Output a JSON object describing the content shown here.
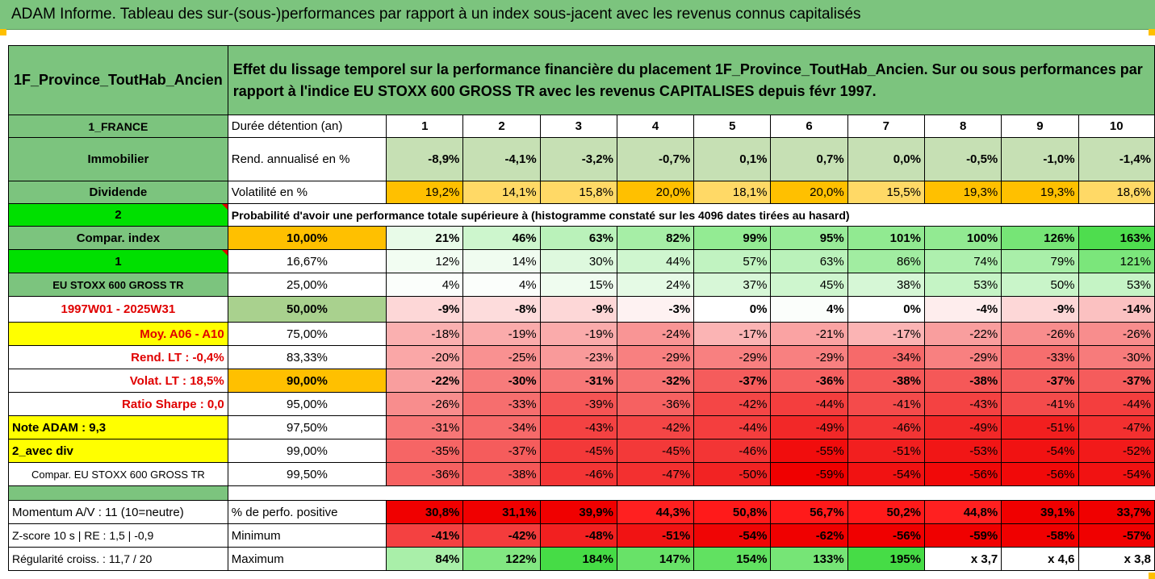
{
  "title": "ADAM Informe. Tableau des sur-(sous-)performances par rapport à un index sous-jacent avec les revenus connus capitalisés",
  "header": {
    "fund_name": "1F_Province_ToutHab_Ancien",
    "description": "Effet du lissage temporel sur la performance financière du placement 1F_Province_ToutHab_Ancien. Sur ou sous performances par rapport à l'indice EU STOXX 600 GROSS TR avec les revenus CAPITALISES depuis févr 1997."
  },
  "rows": {
    "duration": {
      "left": "1_FRANCE",
      "label": "Durée détention (an)",
      "values": [
        "1",
        "2",
        "3",
        "4",
        "5",
        "6",
        "7",
        "8",
        "9",
        "10"
      ]
    },
    "return": {
      "left": "Immobilier",
      "label": "Rend. annualisé en %",
      "values": [
        "-8,9%",
        "-4,1%",
        "-3,2%",
        "-0,7%",
        "0,1%",
        "0,7%",
        "0,0%",
        "-0,5%",
        "-1,0%",
        "-1,4%"
      ]
    },
    "volatility": {
      "left": "Dividende",
      "label": "Volatilité en %",
      "values": [
        "19,2%",
        "14,1%",
        "15,8%",
        "20,0%",
        "18,1%",
        "20,0%",
        "15,5%",
        "19,3%",
        "19,3%",
        "18,6%"
      ]
    },
    "probability": {
      "left": "2",
      "label": "Probabilité d'avoir une performance totale supérieure à (histogramme constaté sur les 4096 dates tirées au hasard)"
    }
  },
  "quantiles": [
    {
      "left": "Compar. index",
      "pct": "10,00%",
      "values": [
        "21%",
        "46%",
        "63%",
        "82%",
        "99%",
        "95%",
        "101%",
        "100%",
        "126%",
        "163%"
      ]
    },
    {
      "left": "1",
      "pct": "16,67%",
      "values": [
        "12%",
        "14%",
        "30%",
        "44%",
        "57%",
        "63%",
        "86%",
        "74%",
        "79%",
        "121%"
      ]
    },
    {
      "left": "EU STOXX 600 GROSS TR",
      "pct": "25,00%",
      "values": [
        "4%",
        "4%",
        "15%",
        "24%",
        "37%",
        "45%",
        "38%",
        "53%",
        "50%",
        "53%"
      ]
    },
    {
      "left": "1997W01 - 2025W31",
      "pct": "50,00%",
      "values": [
        "-9%",
        "-8%",
        "-9%",
        "-3%",
        "0%",
        "4%",
        "0%",
        "-4%",
        "-9%",
        "-14%"
      ]
    },
    {
      "left": "Moy. A06 - A10",
      "pct": "75,00%",
      "values": [
        "-18%",
        "-19%",
        "-19%",
        "-24%",
        "-17%",
        "-21%",
        "-17%",
        "-22%",
        "-26%",
        "-26%"
      ]
    },
    {
      "left": "Rend. LT :   -0,4%",
      "pct": "83,33%",
      "values": [
        "-20%",
        "-25%",
        "-23%",
        "-29%",
        "-29%",
        "-29%",
        "-34%",
        "-29%",
        "-33%",
        "-30%"
      ]
    },
    {
      "left": "Volat. LT :   18,5%",
      "pct": "90,00%",
      "values": [
        "-22%",
        "-30%",
        "-31%",
        "-32%",
        "-37%",
        "-36%",
        "-38%",
        "-38%",
        "-37%",
        "-37%"
      ]
    },
    {
      "left": "Ratio Sharpe :   0,0",
      "pct": "95,00%",
      "values": [
        "-26%",
        "-33%",
        "-39%",
        "-36%",
        "-42%",
        "-44%",
        "-41%",
        "-43%",
        "-41%",
        "-44%"
      ]
    },
    {
      "left": "Note ADAM : 9,3",
      "pct": "97,50%",
      "values": [
        "-31%",
        "-34%",
        "-43%",
        "-42%",
        "-44%",
        "-49%",
        "-46%",
        "-49%",
        "-51%",
        "-47%"
      ]
    },
    {
      "left": "2_avec div",
      "pct": "99,00%",
      "values": [
        "-35%",
        "-37%",
        "-45%",
        "-45%",
        "-46%",
        "-55%",
        "-51%",
        "-53%",
        "-54%",
        "-52%"
      ]
    },
    {
      "left": "Compar. EU STOXX 600 GROSS TR",
      "pct": "99,50%",
      "values": [
        "-36%",
        "-38%",
        "-46%",
        "-47%",
        "-50%",
        "-59%",
        "-54%",
        "-56%",
        "-56%",
        "-54%"
      ]
    }
  ],
  "summary": [
    {
      "left": "Momentum A/V : 11 (10=neutre)",
      "label": "% de perfo. positive",
      "values": [
        "30,8%",
        "31,1%",
        "39,9%",
        "44,3%",
        "50,8%",
        "56,7%",
        "50,2%",
        "44,8%",
        "39,1%",
        "33,7%"
      ]
    },
    {
      "left": "Z-score 10 s  | RE : 1,5  | -0,9",
      "label": "Minimum",
      "values": [
        "-41%",
        "-42%",
        "-48%",
        "-51%",
        "-54%",
        "-62%",
        "-56%",
        "-59%",
        "-58%",
        "-57%"
      ]
    },
    {
      "left": "Régularité croiss. : 11,7 / 20",
      "label": "Maximum",
      "values": [
        "84%",
        "122%",
        "184%",
        "147%",
        "154%",
        "133%",
        "195%",
        "x 3,7",
        "x 4,6",
        "x 3,8"
      ]
    }
  ],
  "colors": {
    "header_green": "#7cc47e",
    "return_cells": "#c6e0b4",
    "volatility_high": "#ffc000",
    "volatility_low": "#ffd966",
    "highlight_yellow": "#ffff00",
    "highlight_lime": "#00e000",
    "title_red": "#e00000"
  }
}
